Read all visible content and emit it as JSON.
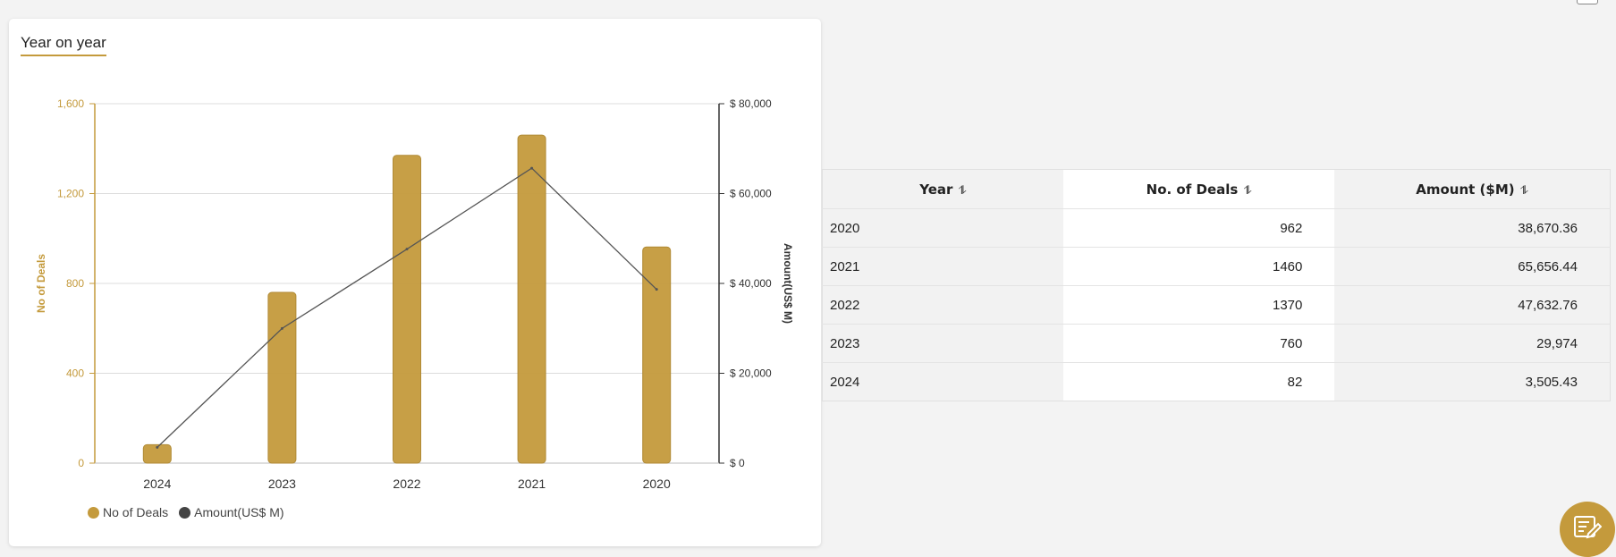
{
  "card": {
    "title": "Year on year"
  },
  "chart_data": {
    "type": "bar",
    "categories": [
      "2024",
      "2023",
      "2022",
      "2021",
      "2020"
    ],
    "series": [
      {
        "name": "No of Deals",
        "type": "bar",
        "axis": "left",
        "values": [
          82,
          760,
          1370,
          1460,
          962
        ],
        "color": "#c49a3c"
      },
      {
        "name": "Amount(US$ M)",
        "type": "line",
        "axis": "right",
        "values": [
          3505.43,
          29974,
          47632.76,
          65656.44,
          38670.36
        ],
        "color": "#555555"
      }
    ],
    "ylabel": "No of Deals",
    "y2label": "Amount(US$ M)",
    "ylim": [
      0,
      1600
    ],
    "y2lim": [
      0,
      80000
    ],
    "yticks": [
      "0",
      "400",
      "800",
      "1,200",
      "1,600"
    ],
    "y2ticks": [
      "$ 0",
      "$ 20,000",
      "$ 40,000",
      "$ 60,000",
      "$ 80,000"
    ],
    "grid": true,
    "legend": "bottom-left"
  },
  "table": {
    "headers": [
      "Year",
      "No. of Deals",
      "Amount ($M)"
    ],
    "sort_icons": [
      "⥮",
      "⥮",
      "⥮"
    ],
    "rows": [
      [
        "2020",
        "962",
        "38,670.36"
      ],
      [
        "2021",
        "1460",
        "65,656.44"
      ],
      [
        "2022",
        "1370",
        "47,632.76"
      ],
      [
        "2023",
        "760",
        "29,974"
      ],
      [
        "2024",
        "82",
        "3,505.43"
      ]
    ]
  },
  "fab": {
    "icon": "notepad-edit-icon",
    "color": "#c49a3c"
  }
}
